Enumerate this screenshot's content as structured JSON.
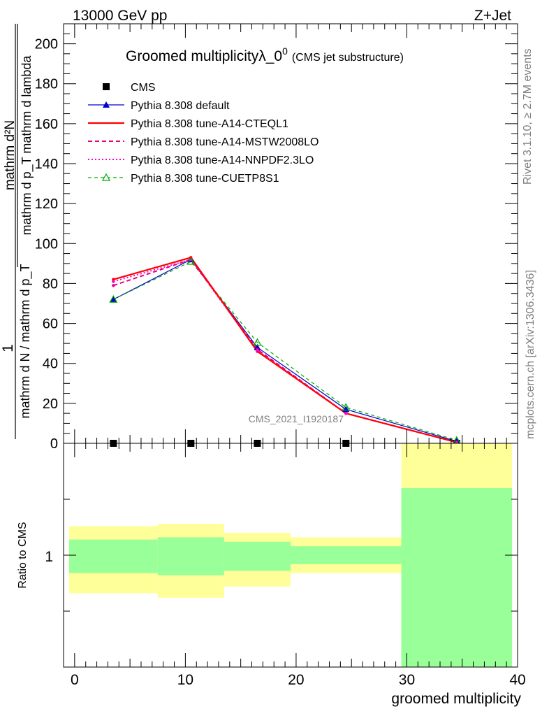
{
  "header": {
    "energy_label": "13000 GeV pp",
    "process_label": "Z+Jet",
    "rivet_label": "Rivet 3.1.10, ≥ 2.7M events",
    "mcplots_label": "mcplots.cern.ch [arXiv:1306.3436]",
    "analysis_label": "CMS_2021_I1920187"
  },
  "colors": {
    "cms": "#000000",
    "default": "#0000cc",
    "cteql1": "#ff0000",
    "mstw": "#e6007e",
    "nnpdf": "#ff00cc",
    "cuetp": "#00aa00",
    "band_inner": "#99ff99",
    "band_outer": "#ffff99"
  },
  "chart_data": [
    {
      "type": "line",
      "title_main": "Groomed multiplicityλ_0",
      "title_sup": "0",
      "title_note": "(CMS jet substructure)",
      "ylabel_num": "1",
      "ylabel_den": "mathrm d N / mathrm d p_T",
      "ylabel_frac_num": "mathrm d²N",
      "ylabel_frac_den": "mathrm d p_T mathrm d lambda",
      "xlim": [
        -1,
        40
      ],
      "ylim": [
        0,
        210
      ],
      "yticks": [
        0,
        20,
        40,
        60,
        80,
        100,
        120,
        140,
        160,
        180,
        200
      ],
      "yticklabels": [
        "0",
        "20",
        "40",
        "60",
        "80",
        "100",
        "120",
        "140",
        "160",
        "180",
        "200"
      ],
      "legend_position": "top-left",
      "x": [
        3.5,
        10.5,
        16.5,
        24.5,
        34.5
      ],
      "series": [
        {
          "key": "cms",
          "name": "CMS",
          "style": "square",
          "values": [
            0,
            0,
            0,
            0,
            0
          ]
        },
        {
          "key": "default",
          "name": "Pythia 8.308 default",
          "style": "line-triangle",
          "values": [
            72,
            92,
            48,
            17,
            1
          ]
        },
        {
          "key": "cteql1",
          "name": "Pythia 8.308 tune-A14-CTEQL1",
          "style": "solid",
          "values": [
            82,
            93,
            46,
            15,
            0.5
          ]
        },
        {
          "key": "mstw",
          "name": "Pythia 8.308 tune-A14-MSTW2008LO",
          "style": "dashed",
          "values": [
            79,
            92,
            47,
            15,
            0.5
          ]
        },
        {
          "key": "nnpdf",
          "name": "Pythia 8.308 tune-A14-NNPDF2.3LO",
          "style": "dotted",
          "values": [
            81,
            92,
            46.5,
            15,
            0.5
          ]
        },
        {
          "key": "cuetp",
          "name": "Pythia 8.308 tune-CUETP8S1",
          "style": "dashed-open-triangle",
          "values": [
            72,
            91,
            50.5,
            18,
            1.5
          ]
        }
      ]
    },
    {
      "type": "area",
      "ylabel": "Ratio to CMS",
      "xlabel": "groomed multiplicity",
      "xlim": [
        -1,
        40
      ],
      "ylim": [
        0.5,
        1.5
      ],
      "yticks": [
        1
      ],
      "yticklabels": [
        "1"
      ],
      "xticks": [
        0,
        10,
        20,
        30,
        40
      ],
      "xticklabels": [
        "0",
        "10",
        "20",
        "30",
        "40"
      ],
      "bins": [
        {
          "x_low": -0.5,
          "x_high": 7.5,
          "inner": [
            0.92,
            1.07
          ],
          "outer": [
            0.83,
            1.13
          ]
        },
        {
          "x_low": 7.5,
          "x_high": 13.5,
          "inner": [
            0.91,
            1.08
          ],
          "outer": [
            0.81,
            1.14
          ]
        },
        {
          "x_low": 13.5,
          "x_high": 19.5,
          "inner": [
            0.93,
            1.06
          ],
          "outer": [
            0.86,
            1.1
          ]
        },
        {
          "x_low": 19.5,
          "x_high": 29.5,
          "inner": [
            0.96,
            1.04
          ],
          "outer": [
            0.92,
            1.08
          ]
        },
        {
          "x_low": 29.5,
          "x_high": 39.5,
          "inner": [
            0.5,
            1.3
          ],
          "outer": [
            0.5,
            1.5
          ]
        }
      ]
    }
  ]
}
